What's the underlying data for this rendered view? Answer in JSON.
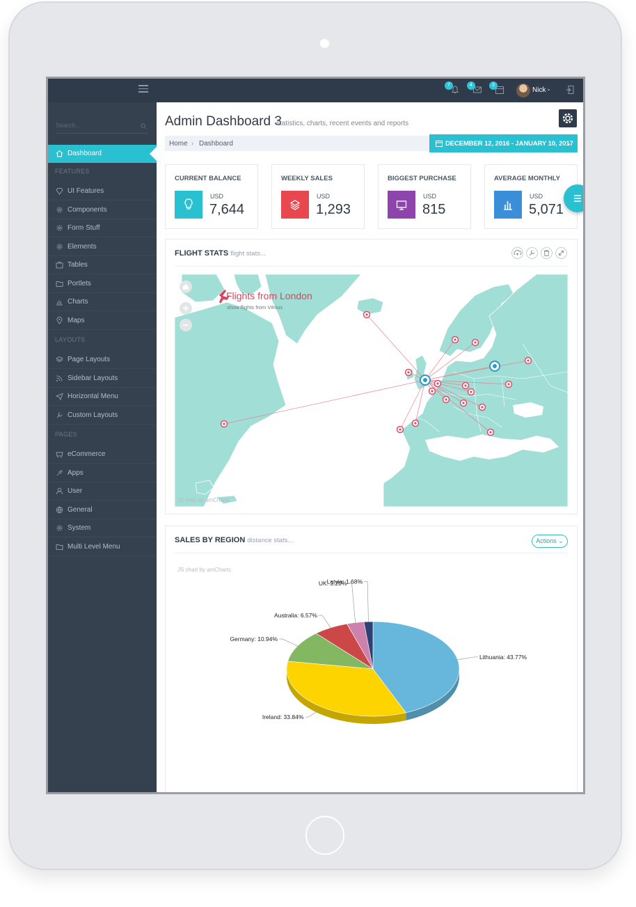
{
  "topbar": {
    "badges": [
      "7",
      "4",
      "3"
    ],
    "user_name": "Nick"
  },
  "sidebar": {
    "search_placeholder": "Search...",
    "active_item": "Dashboard",
    "sections": {
      "features": "FEATURES",
      "layouts": "LAYOUTS",
      "pages": "PAGES"
    },
    "feature_items": [
      "UI Features",
      "Components",
      "Form Stuff",
      "Elements",
      "Tables",
      "Portlets",
      "Charts",
      "Maps"
    ],
    "layout_items": [
      "Page Layouts",
      "Sidebar Layouts",
      "Horizontal Menu",
      "Custom Layouts"
    ],
    "page_items": [
      "eCommerce",
      "Apps",
      "User",
      "General",
      "System",
      "Multi Level Menu"
    ]
  },
  "header": {
    "title": "Admin Dashboard 3",
    "subtitle": "statistics, charts, recent events and reports",
    "breadcrumb": [
      "Home",
      "›",
      "Dashboard"
    ],
    "date_range": "DECEMBER 12, 2016 - JANUARY 10, 2017"
  },
  "stats": [
    {
      "title": "CURRENT BALANCE",
      "currency": "USD",
      "value": "7,644",
      "color": "#29c0d2",
      "icon": "lightbulb-icon"
    },
    {
      "title": "WEEKLY SALES",
      "currency": "USD",
      "value": "1,293",
      "color": "#e8474f",
      "icon": "layers-icon"
    },
    {
      "title": "BIGGEST PURCHASE",
      "currency": "USD",
      "value": "815",
      "color": "#8e44ad",
      "icon": "monitor-icon"
    },
    {
      "title": "AVERAGE MONTHLY",
      "currency": "USD",
      "value": "5,071",
      "color": "#3b8ed8",
      "icon": "bar-chart-icon"
    }
  ],
  "flight_stats": {
    "title": "FLIGHT STATS",
    "subtitle": "flight stats...",
    "map_title": "Flights from London",
    "map_subtitle": "show flights from Vilnius",
    "credit": "JS map by amCharts"
  },
  "sales_by_region": {
    "title": "SALES BY REGION",
    "subtitle": "distance stats...",
    "actions_label": "Actions",
    "credit": "JS chart by amCharts"
  },
  "chart_data": {
    "type": "pie",
    "categories": [
      "Lithuania",
      "Ireland",
      "Germany",
      "Australia",
      "UK",
      "Latvia",
      ""
    ],
    "values": [
      43.77,
      33.84,
      10.94,
      6.57,
      3.2,
      1.68,
      0.0
    ],
    "labels": [
      "Lithuania: 43.77%",
      "Ireland: 33.84%",
      "Germany: 10.94%",
      "Australia: 6.57%",
      "UK: 3.20%",
      "Latvia: 1.68%"
    ],
    "colors": [
      "#67b7dc",
      "#fdd400",
      "#84b761",
      "#cc4748",
      "#cd82ad",
      "#2f4074"
    ]
  }
}
